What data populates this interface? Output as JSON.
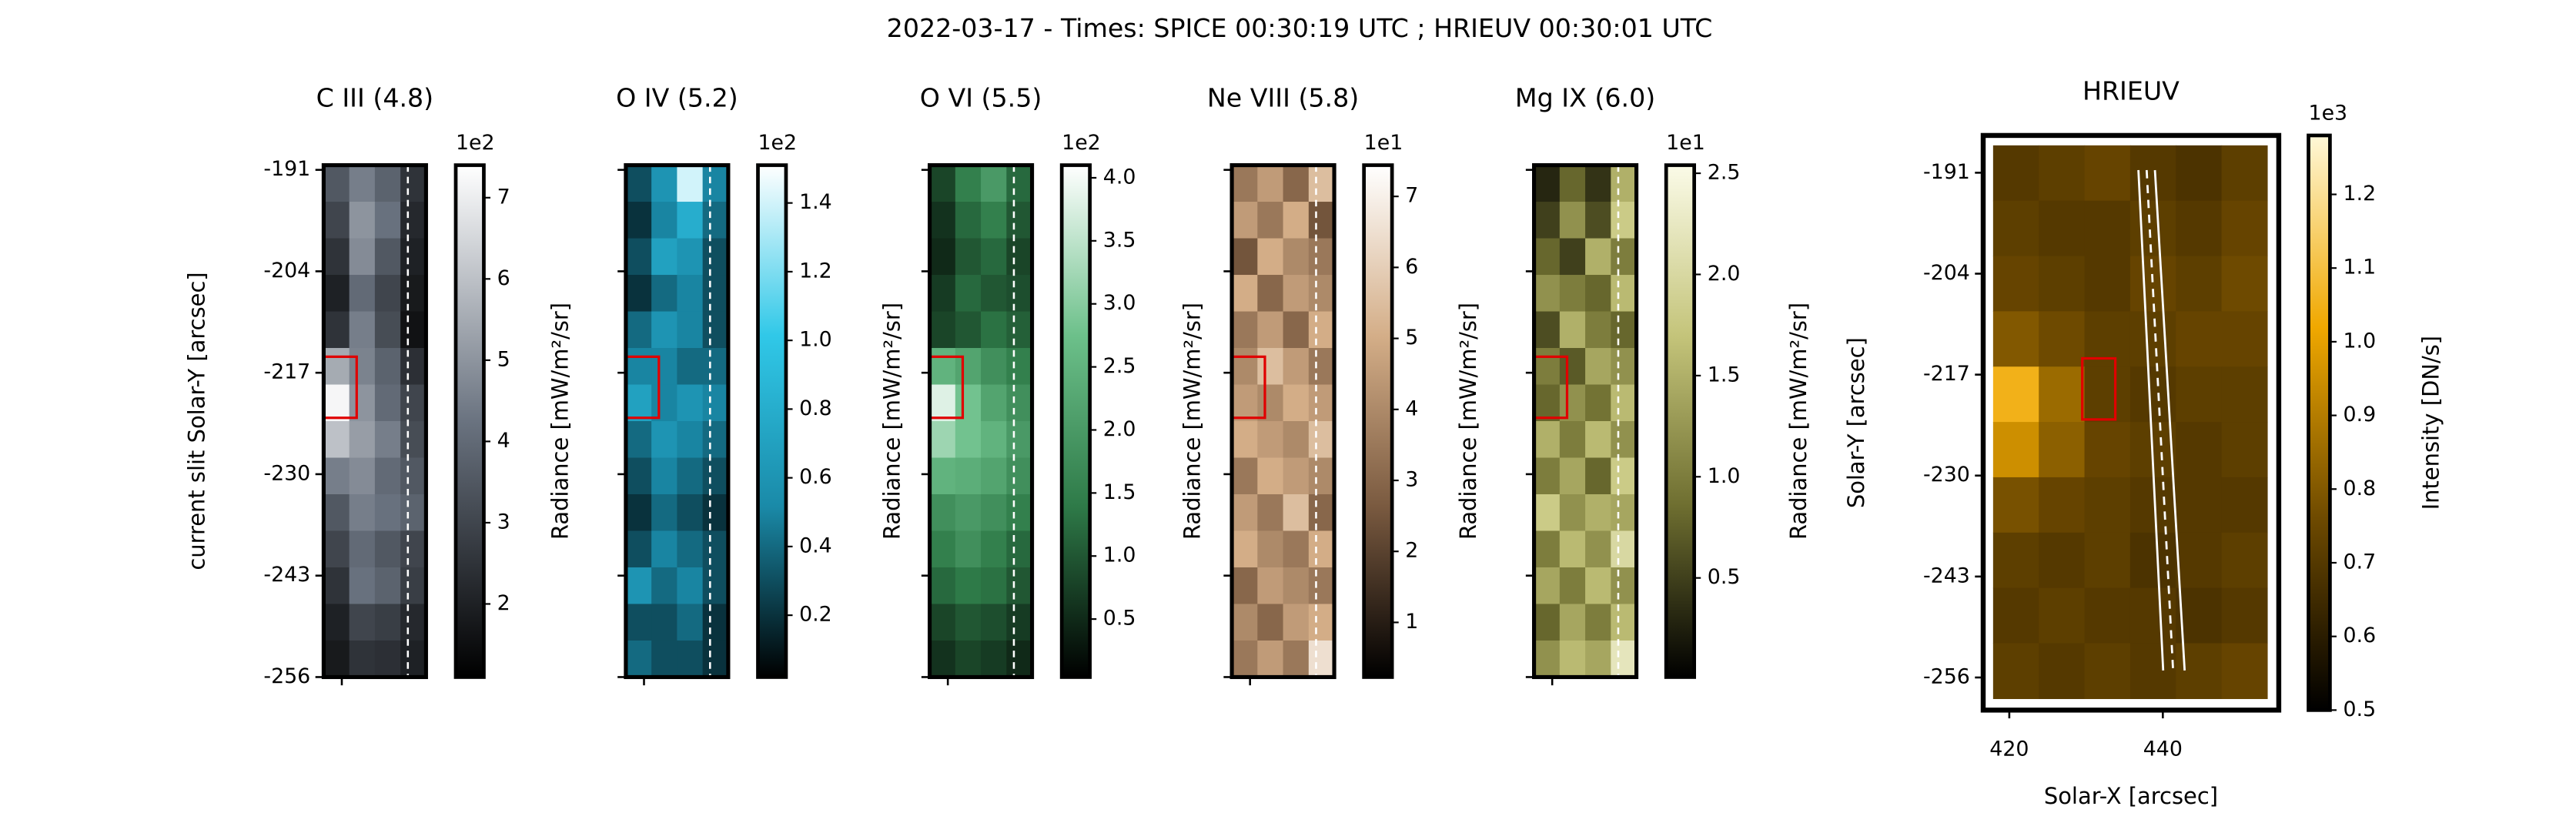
{
  "title": "2022-03-17 - Times: SPICE 00:30:19 UTC ; HRIEUV 00:30:01 UTC",
  "chart_data": [
    {
      "type": "heatmap",
      "title": "C III (4.8)",
      "ylabel": "current slit Solar-Y [arcsec]",
      "ylim": [
        -256,
        -190.4
      ],
      "yticks": [
        -191,
        -204,
        -217,
        -230,
        -243,
        -256
      ],
      "colorbar": {
        "label": "Radiance [mW/m²/sr]",
        "multiplier": "1e2",
        "clim": [
          1.1,
          7.4
        ],
        "ticks": [
          2,
          3,
          4,
          5,
          6,
          7
        ],
        "colormap": [
          "#000000",
          "#6a7380",
          "#ffffff"
        ]
      },
      "values": [
        [
          3.5,
          4.5,
          3.8,
          2.5
        ],
        [
          3.0,
          5.0,
          4.2,
          2.2
        ],
        [
          2.5,
          4.8,
          3.5,
          2.0
        ],
        [
          2.0,
          4.0,
          3.0,
          1.8
        ],
        [
          2.5,
          4.5,
          3.2,
          1.6
        ],
        [
          5.5,
          4.6,
          3.8,
          2.4
        ],
        [
          7.2,
          5.0,
          4.0,
          3.0
        ],
        [
          6.0,
          5.2,
          4.5,
          3.2
        ],
        [
          4.5,
          4.8,
          4.0,
          3.5
        ],
        [
          3.5,
          4.5,
          4.2,
          3.8
        ],
        [
          3.0,
          4.0,
          3.5,
          3.0
        ],
        [
          2.5,
          4.2,
          3.8,
          2.8
        ],
        [
          2.0,
          3.0,
          2.8,
          2.2
        ],
        [
          1.8,
          2.5,
          2.4,
          2.0
        ]
      ]
    },
    {
      "type": "heatmap",
      "title": "O IV (5.2)",
      "ylim": [
        -256,
        -190.4
      ],
      "yticks": [
        -191,
        -204,
        -217,
        -230,
        -243,
        -256
      ],
      "colorbar": {
        "label": "Radiance [mW/m²/sr]",
        "multiplier": "1e2",
        "clim": [
          0.02,
          1.51
        ],
        "ticks": [
          0.2,
          0.4,
          0.6,
          0.8,
          {
            "value": 1,
            "label": "1.0"
          },
          1.2,
          1.4
        ],
        "colormap": [
          "#000000",
          "#1a8aa8",
          "#30c8e8",
          "#ffffff"
        ]
      },
      "values": [
        [
          0.3,
          0.6,
          1.4,
          0.5
        ],
        [
          0.2,
          0.5,
          0.8,
          0.4
        ],
        [
          0.3,
          0.7,
          0.6,
          0.3
        ],
        [
          0.2,
          0.4,
          0.5,
          0.3
        ],
        [
          0.4,
          0.6,
          0.5,
          0.3
        ],
        [
          0.5,
          0.5,
          0.4,
          0.4
        ],
        [
          0.7,
          0.5,
          0.6,
          0.5
        ],
        [
          0.4,
          0.6,
          0.5,
          0.4
        ],
        [
          0.3,
          0.5,
          0.4,
          0.3
        ],
        [
          0.2,
          0.4,
          0.3,
          0.2
        ],
        [
          0.3,
          0.5,
          0.4,
          0.3
        ],
        [
          0.6,
          0.4,
          0.5,
          0.3
        ],
        [
          0.3,
          0.3,
          0.4,
          0.2
        ],
        [
          0.4,
          0.3,
          0.3,
          0.2
        ]
      ]
    },
    {
      "type": "heatmap",
      "title": "O VI (5.5)",
      "ylim": [
        -256,
        -190.4
      ],
      "yticks": [
        -191,
        -204,
        -217,
        -230,
        -243,
        -256
      ],
      "colorbar": {
        "label": "Radiance [mW/m²/sr]",
        "multiplier": "1e2",
        "clim": [
          0.04,
          4.1
        ],
        "ticks": [
          0.5,
          {
            "value": 1,
            "label": "1.0"
          },
          1.5,
          {
            "value": 2,
            "label": "2.0"
          },
          2.5,
          {
            "value": 3,
            "label": "3.0"
          },
          3.5,
          {
            "value": 4,
            "label": "4.0"
          }
        ],
        "colormap": [
          "#000000",
          "#2e7a48",
          "#6cc08a",
          "#ffffff"
        ]
      },
      "values": [
        [
          0.8,
          1.5,
          2.0,
          1.2
        ],
        [
          0.6,
          1.2,
          1.5,
          1.0
        ],
        [
          0.5,
          1.0,
          1.2,
          0.8
        ],
        [
          0.7,
          1.2,
          1.0,
          0.9
        ],
        [
          0.8,
          1.0,
          1.3,
          1.1
        ],
        [
          2.5,
          2.2,
          1.8,
          1.5
        ],
        [
          3.8,
          2.8,
          2.2,
          1.8
        ],
        [
          3.2,
          2.8,
          2.5,
          2.0
        ],
        [
          2.5,
          2.4,
          2.2,
          1.8
        ],
        [
          1.8,
          2.0,
          1.8,
          1.5
        ],
        [
          1.5,
          1.8,
          1.5,
          1.2
        ],
        [
          1.2,
          1.4,
          1.3,
          1.0
        ],
        [
          0.8,
          1.0,
          0.9,
          0.7
        ],
        [
          0.6,
          0.8,
          0.7,
          0.5
        ]
      ]
    },
    {
      "type": "heatmap",
      "title": "Ne VIII (5.8)",
      "ylim": [
        -256,
        -190.4
      ],
      "yticks": [
        -191,
        -204,
        -217,
        -230,
        -243,
        -256
      ],
      "colorbar": {
        "label": "Radiance [mW/m²/sr]",
        "multiplier": "1e1",
        "clim": [
          0.23,
          7.44
        ],
        "ticks": [
          1,
          2,
          3,
          4,
          5,
          6,
          7
        ],
        "colormap": [
          "#000000",
          "#7a5a40",
          "#d4ae88",
          "#ffffff"
        ]
      },
      "values": [
        [
          3.5,
          4.5,
          3.0,
          5.5
        ],
        [
          4.5,
          3.5,
          5.0,
          2.5
        ],
        [
          2.5,
          5.0,
          4.0,
          3.5
        ],
        [
          5.0,
          3.0,
          4.5,
          4.0
        ],
        [
          3.5,
          4.5,
          3.0,
          5.0
        ],
        [
          4.0,
          5.5,
          4.5,
          3.5
        ],
        [
          4.5,
          4.0,
          5.0,
          4.5
        ],
        [
          5.0,
          4.5,
          4.0,
          5.5
        ],
        [
          3.5,
          5.0,
          4.5,
          4.0
        ],
        [
          4.5,
          3.5,
          5.5,
          3.0
        ],
        [
          5.0,
          4.0,
          3.5,
          5.0
        ],
        [
          3.0,
          4.5,
          4.0,
          3.5
        ],
        [
          4.0,
          3.0,
          4.5,
          5.0
        ],
        [
          3.5,
          4.5,
          3.5,
          6.5
        ]
      ]
    },
    {
      "type": "heatmap",
      "title": "Mg IX (6.0)",
      "ylim": [
        -256,
        -190.4
      ],
      "yticks": [
        -191,
        -204,
        -217,
        -230,
        -243,
        -256
      ],
      "colorbar": {
        "label": "Radiance [mW/m²/sr]",
        "multiplier": "1e1",
        "clim": [
          0.01,
          2.54
        ],
        "ticks": [
          0.5,
          {
            "value": 1,
            "label": "1.0"
          },
          1.5,
          {
            "value": 2,
            "label": "2.0"
          },
          2.5
        ],
        "colormap": [
          "#000000",
          "#6e6e30",
          "#c4c47a",
          "#fbfbe8"
        ]
      },
      "values": [
        [
          0.3,
          0.8,
          0.4,
          1.5
        ],
        [
          0.5,
          1.2,
          0.6,
          1.8
        ],
        [
          0.8,
          0.5,
          1.5,
          1.0
        ],
        [
          1.2,
          1.0,
          0.8,
          1.6
        ],
        [
          0.6,
          1.5,
          1.0,
          0.8
        ],
        [
          1.0,
          0.7,
          1.4,
          1.2
        ],
        [
          0.8,
          1.2,
          0.9,
          1.6
        ],
        [
          1.5,
          1.0,
          1.6,
          1.2
        ],
        [
          1.0,
          1.4,
          0.8,
          1.8
        ],
        [
          1.8,
          1.2,
          1.5,
          1.4
        ],
        [
          1.0,
          1.6,
          1.2,
          2.0
        ],
        [
          1.4,
          1.0,
          1.6,
          1.2
        ],
        [
          0.8,
          1.4,
          1.0,
          1.6
        ],
        [
          1.2,
          1.6,
          1.4,
          2.2
        ]
      ]
    },
    {
      "type": "image",
      "title": "HRIEUV",
      "xlabel": "Solar-X [arcsec]",
      "ylabel": "Solar-Y [arcsec]",
      "xlim": [
        416.6,
        455.1
      ],
      "xticks": [
        420,
        440
      ],
      "ylim": [
        -260.2,
        -186.2
      ],
      "yticks": [
        -191,
        -204,
        -217,
        -230,
        -243,
        -256
      ],
      "colorbar": {
        "label": "Intensity [DN/s]",
        "multiplier": "1e3",
        "clim": [
          0.5,
          1.28
        ],
        "ticks": [
          0.5,
          0.6,
          0.7,
          0.8,
          0.9,
          {
            "value": 1,
            "label": "1.0"
          },
          1.1,
          1.2
        ],
        "colormap": [
          "#000000",
          "#6e4a00",
          "#f0a800",
          "#fff8d8"
        ]
      },
      "values": [
        [
          0.7,
          0.72,
          0.74,
          0.7,
          0.68,
          0.72
        ],
        [
          0.72,
          0.7,
          0.7,
          0.72,
          0.7,
          0.74
        ],
        [
          0.74,
          0.72,
          0.7,
          0.74,
          0.72,
          0.76
        ],
        [
          0.8,
          0.76,
          0.72,
          0.72,
          0.74,
          0.74
        ],
        [
          1.05,
          0.85,
          0.72,
          0.7,
          0.72,
          0.72
        ],
        [
          0.95,
          0.82,
          0.74,
          0.72,
          0.7,
          0.72
        ],
        [
          0.78,
          0.74,
          0.72,
          0.7,
          0.7,
          0.7
        ],
        [
          0.72,
          0.7,
          0.72,
          0.68,
          0.7,
          0.72
        ],
        [
          0.7,
          0.72,
          0.7,
          0.7,
          0.68,
          0.7
        ],
        [
          0.72,
          0.7,
          0.72,
          0.7,
          0.72,
          0.74
        ]
      ]
    }
  ]
}
